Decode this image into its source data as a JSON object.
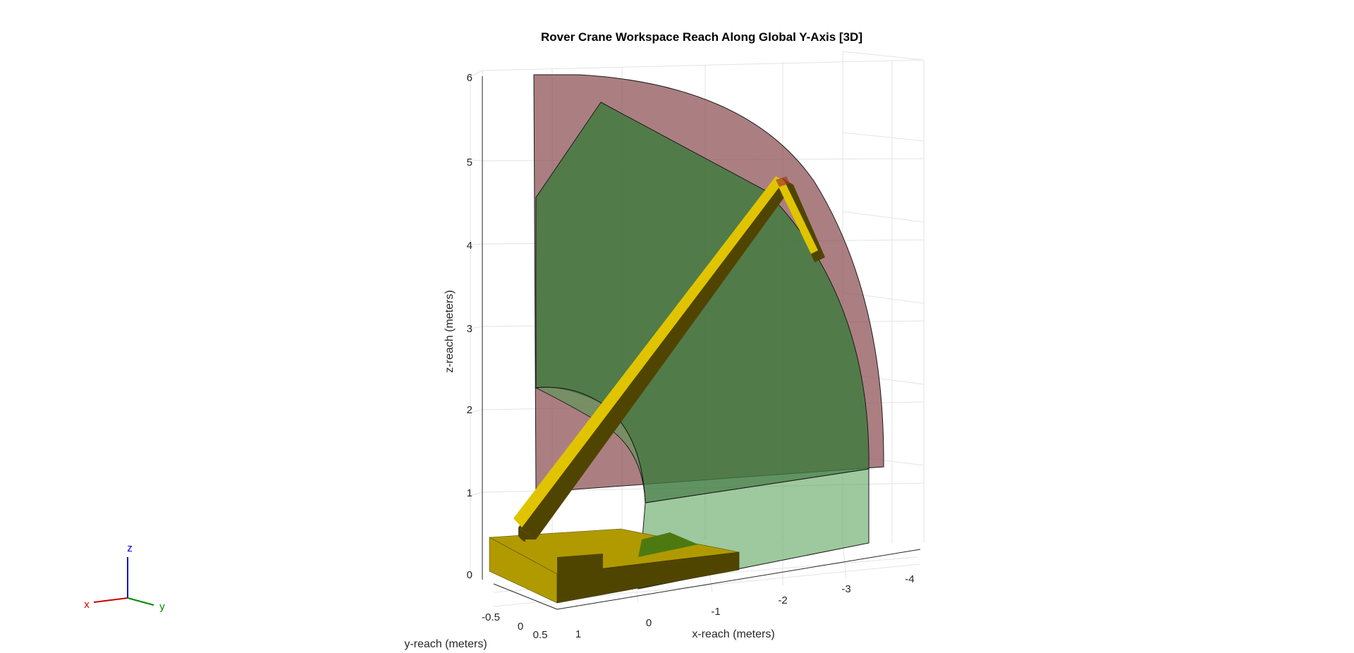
{
  "chart_data": {
    "type": "3d-surface",
    "title": "Rover Crane Workspace Reach Along Global Y-Axis [3D]",
    "xlabel": "x-reach (meters)",
    "ylabel": "y-reach (meters)",
    "zlabel": "z-reach (meters)",
    "x_ticks": [
      "1",
      "0",
      "-1",
      "-2",
      "-3",
      "-4"
    ],
    "y_ticks": [
      "-0.5",
      "0",
      "0.5"
    ],
    "z_ticks": [
      "0",
      "1",
      "2",
      "3",
      "4",
      "5",
      "6"
    ],
    "grid": true,
    "surfaces": [
      {
        "name": "outer reach sector",
        "color": "#8b4d52"
      },
      {
        "name": "inner reach sector",
        "color": "#3e7a3e"
      }
    ],
    "crane_color": "#e0c400"
  },
  "triad": {
    "x": "x",
    "y": "y",
    "z": "z"
  }
}
